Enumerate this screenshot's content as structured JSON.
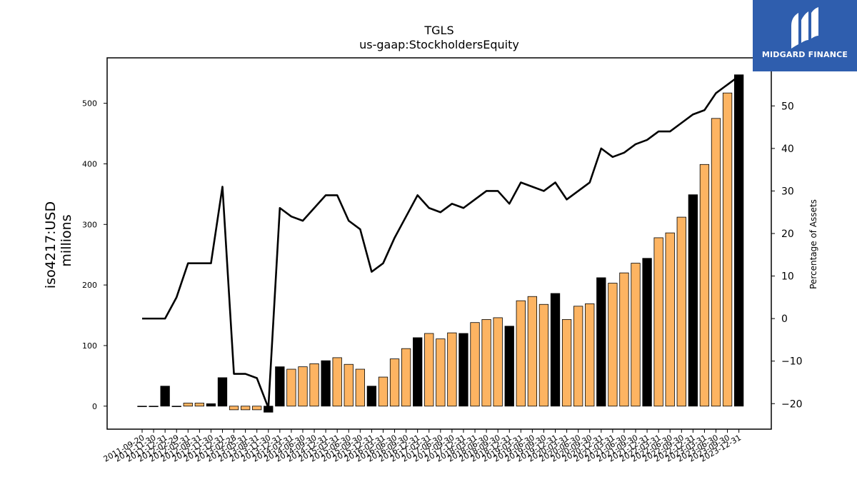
{
  "chart_data": {
    "type": "bar",
    "title": "TGLS",
    "subtitle": "us-gaap:StockholdersEquity",
    "ylabel": "iso4217:USD",
    "ylabel_unit": "millions",
    "y2label": "Percentage of Assets",
    "ylim": [
      -38,
      575
    ],
    "y2lim": [
      -26,
      61.3
    ],
    "yticks": [
      0,
      100,
      200,
      300,
      400,
      500
    ],
    "y2ticks": [
      -20,
      -10,
      0,
      10,
      20,
      30,
      40,
      50
    ],
    "categories": [
      "2011-09-20",
      "2011-11-30",
      "2011-12-31",
      "2012-02-29",
      "2012-05-31",
      "2012-08-31",
      "2012-11-30",
      "2012-12-31",
      "2013-02-28",
      "2013-05-31",
      "2013-08-31",
      "2013-11-30",
      "2013-12-31",
      "2014-03-31",
      "2014-06-30",
      "2014-09-30",
      "2014-12-31",
      "2015-03-31",
      "2015-06-30",
      "2015-09-30",
      "2015-12-31",
      "2016-03-31",
      "2016-06-30",
      "2016-09-30",
      "2016-12-31",
      "2017-03-31",
      "2017-06-30",
      "2017-09-30",
      "2017-12-31",
      "2018-03-31",
      "2018-06-30",
      "2018-09-30",
      "2018-12-31",
      "2019-03-31",
      "2019-06-30",
      "2019-09-30",
      "2019-12-31",
      "2020-03-31",
      "2020-06-30",
      "2020-09-30",
      "2020-12-31",
      "2021-03-31",
      "2021-06-30",
      "2021-09-30",
      "2021-12-31",
      "2022-03-31",
      "2022-06-30",
      "2022-09-30",
      "2022-12-31",
      "2023-03-31",
      "2023-06-30",
      "2023-09-30",
      "2023-12-31"
    ],
    "series": [
      {
        "values": [
          0,
          0,
          33,
          0,
          5,
          5,
          4,
          47,
          -6,
          -6,
          -6,
          -10,
          65,
          61,
          65,
          70,
          75,
          80,
          69,
          61,
          33,
          48,
          78,
          95,
          113,
          120,
          111,
          121,
          120,
          138,
          143,
          146,
          132,
          174,
          181,
          168,
          186,
          143,
          165,
          169,
          212,
          203,
          220,
          236,
          244,
          278,
          286,
          312,
          349,
          399,
          475,
          517,
          547
        ],
        "annual": [
          false,
          false,
          true,
          false,
          false,
          false,
          true,
          true,
          false,
          false,
          false,
          true,
          true,
          false,
          false,
          false,
          true,
          false,
          false,
          false,
          true,
          false,
          false,
          false,
          true,
          false,
          false,
          false,
          true,
          false,
          false,
          false,
          true,
          false,
          false,
          false,
          true,
          false,
          false,
          false,
          true,
          false,
          false,
          false,
          true,
          false,
          false,
          false,
          true,
          false,
          false,
          false,
          true
        ],
        "colors": {
          "quarter": "#fdb462",
          "annual": "#000000"
        }
      },
      {
        "type": "line",
        "axis": "right",
        "values": [
          0,
          0,
          0,
          5,
          13,
          13,
          13,
          31,
          -13,
          -13,
          -14,
          -21,
          26,
          24,
          23,
          26,
          29,
          29,
          23,
          21,
          11,
          13,
          19,
          24,
          29,
          26,
          25,
          27,
          26,
          28,
          30,
          30,
          27,
          32,
          31,
          30,
          32,
          28,
          30,
          32,
          40,
          38,
          39,
          41,
          42,
          44,
          44,
          46,
          48,
          49,
          53,
          55,
          57
        ],
        "color": "#000000"
      }
    ]
  },
  "brand": {
    "name": "MIDGARD FINANCE",
    "bg": "#2f5eae",
    "icon": "midgard-logo-icon"
  }
}
